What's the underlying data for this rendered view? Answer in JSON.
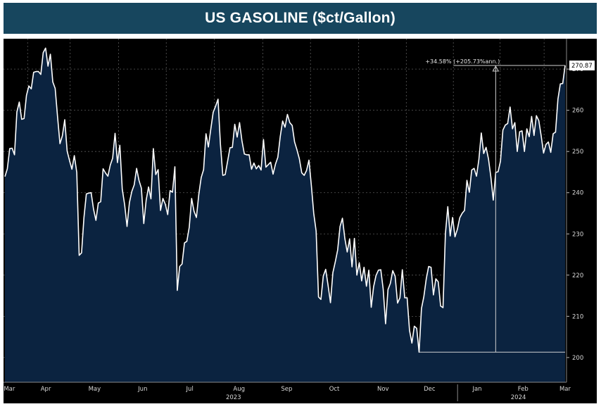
{
  "header": {
    "title": "US GASOLINE ($ct/Gallon)"
  },
  "colors": {
    "title_bg": "#17465e",
    "plot_bg": "#000000",
    "area_fill": "#0b2340",
    "line": "#ffffff",
    "grid": "#5a5a5a"
  },
  "chart_data": {
    "type": "area",
    "title": "US GASOLINE ($ct/Gallon)",
    "xlabel": "",
    "ylabel": "",
    "ylim": [
      194,
      276
    ],
    "yticks": [
      200,
      210,
      220,
      230,
      240,
      250,
      260,
      270
    ],
    "month_ticks": [
      "Mar",
      "Apr",
      "May",
      "Jun",
      "Jul",
      "Aug",
      "Sep",
      "Oct",
      "Nov",
      "Dec",
      "Jan",
      "Feb",
      "Mar"
    ],
    "years": [
      "2023",
      "2024"
    ],
    "grid": true,
    "last_value": "270.87",
    "annotation": {
      "text": "+34.58% (+205.73%ann.)",
      "from_value": 201.3,
      "to_value": 270.87
    },
    "series": [
      {
        "values": [
          243.9,
          245.8,
          250.7,
          250.8,
          249.2,
          259.6,
          262.0,
          257.8,
          258.0,
          263.6,
          265.9,
          265.2,
          269.2,
          269.4,
          269.4,
          268.7,
          274.0,
          275.1,
          270.7,
          273.6,
          266.9,
          265.3,
          258.4,
          251.9,
          253.8,
          257.7,
          250.1,
          247.8,
          245.7,
          249.0,
          244.9,
          224.8,
          225.4,
          234.0,
          239.7,
          239.9,
          240.0,
          236.0,
          233.3,
          237.5,
          237.8,
          245.8,
          244.8,
          244.0,
          246.7,
          248.4,
          254.4,
          247.3,
          251.5,
          240.9,
          237.1,
          231.8,
          237.6,
          240.3,
          241.9,
          245.9,
          243.0,
          241.1,
          232.5,
          238.2,
          241.4,
          238.5,
          250.7,
          244.4,
          245.6,
          235.7,
          238.6,
          237.2,
          234.7,
          240.5,
          240.1,
          246.3,
          216.3,
          222.1,
          222.7,
          227.8,
          228.2,
          231.6,
          238.6,
          235.5,
          234.0,
          239.6,
          243.7,
          245.6,
          254.3,
          251.1,
          255.4,
          259.5,
          261.0,
          262.7,
          251.8,
          244.2,
          244.4,
          247.6,
          250.9,
          251.0,
          256.6,
          253.5,
          257.0,
          252.6,
          249.4,
          249.2,
          249.2,
          245.7,
          247.2,
          245.8,
          246.6,
          245.5,
          252.9,
          246.2,
          246.8,
          247.4,
          244.5,
          246.9,
          248.6,
          253.6,
          257.4,
          255.9,
          259.0,
          257.0,
          256.3,
          252.3,
          250.4,
          248.2,
          244.8,
          244.2,
          245.4,
          247.9,
          241.8,
          235.0,
          230.7,
          214.7,
          214.1,
          219.8,
          221.4,
          217.5,
          213.3,
          220.6,
          223.2,
          226.1,
          231.8,
          233.8,
          228.9,
          225.6,
          228.8,
          222.0,
          228.9,
          220.0,
          223.0,
          218.6,
          221.9,
          217.3,
          221.2,
          212.2,
          217.2,
          219.9,
          221.2,
          221.3,
          216.6,
          208.2,
          216.5,
          218.0,
          221.1,
          219.7,
          213.2,
          214.5,
          221.3,
          214.5,
          214.5,
          206.6,
          203.5,
          207.6,
          207.1,
          201.3,
          211.9,
          214.8,
          219.1,
          222.1,
          221.9,
          215.2,
          219.1,
          218.4,
          212.5,
          212.1,
          230.0,
          236.6,
          229.5,
          234.0,
          229.3,
          231.1,
          233.9,
          235.0,
          235.7,
          243.0,
          240.1,
          245.5,
          245.9,
          244.0,
          248.1,
          254.5,
          249.5,
          251.0,
          248.2,
          243.8,
          238.2,
          244.9,
          245.1,
          247.7,
          255.2,
          256.4,
          256.8,
          260.8,
          255.5,
          257.0,
          250.0,
          254.8,
          255.0,
          250.0,
          255.5,
          253.6,
          258.5,
          253.9,
          258.7,
          257.5,
          253.8,
          249.6,
          251.7,
          252.3,
          249.8,
          254.3,
          254.7,
          262.7,
          266.4,
          266.5,
          270.87
        ]
      }
    ]
  }
}
